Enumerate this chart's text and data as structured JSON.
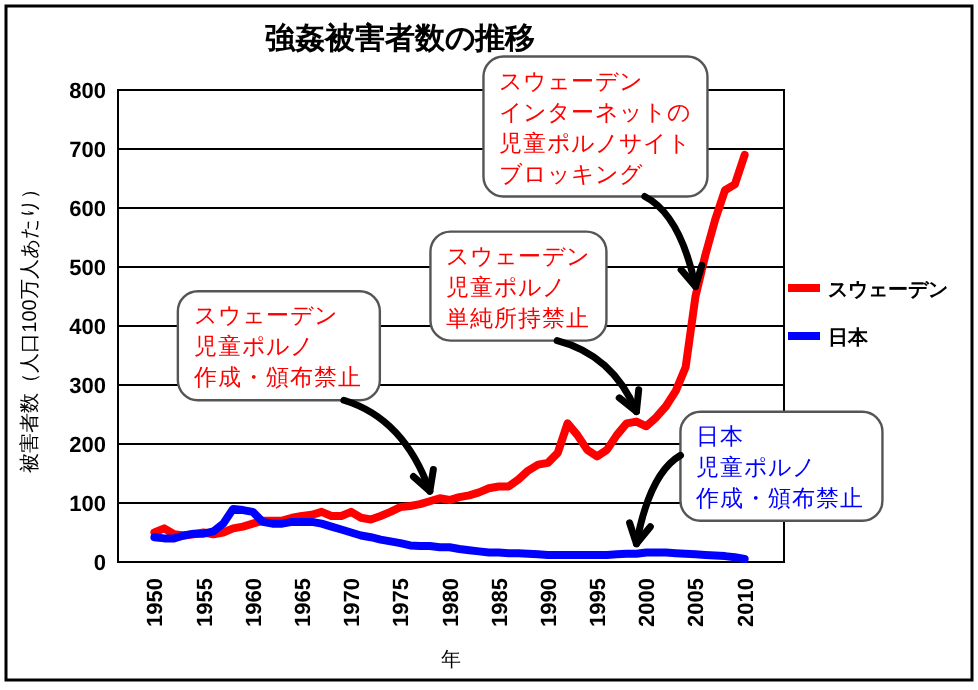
{
  "chart_data": {
    "type": "line",
    "title": "強姦被害者数の推移",
    "xlabel": "年",
    "ylabel": "被害者数（人口100万人あたり）",
    "x": [
      1950,
      1951,
      1952,
      1953,
      1954,
      1955,
      1956,
      1957,
      1958,
      1959,
      1960,
      1961,
      1962,
      1963,
      1964,
      1965,
      1966,
      1967,
      1968,
      1969,
      1970,
      1971,
      1972,
      1973,
      1974,
      1975,
      1976,
      1977,
      1978,
      1979,
      1980,
      1981,
      1982,
      1983,
      1984,
      1985,
      1986,
      1987,
      1988,
      1989,
      1990,
      1991,
      1992,
      1993,
      1994,
      1995,
      1996,
      1997,
      1998,
      1999,
      2000,
      2001,
      2002,
      2003,
      2004,
      2005,
      2006,
      2007,
      2008,
      2009,
      2010
    ],
    "series": [
      {
        "name": "スウェーデン",
        "color": "#ff0000",
        "values": [
          50,
          57,
          47,
          45,
          47,
          50,
          47,
          50,
          57,
          60,
          65,
          70,
          70,
          70,
          75,
          78,
          80,
          85,
          78,
          78,
          85,
          75,
          72,
          78,
          85,
          93,
          95,
          98,
          103,
          108,
          105,
          110,
          113,
          118,
          125,
          128,
          128,
          140,
          155,
          165,
          168,
          185,
          235,
          215,
          190,
          179,
          190,
          215,
          235,
          238,
          230,
          245,
          264,
          290,
          330,
          450,
          520,
          580,
          630,
          640,
          690
        ]
      },
      {
        "name": "日本",
        "color": "#0000ff",
        "values": [
          42,
          40,
          40,
          45,
          48,
          48,
          52,
          65,
          90,
          88,
          85,
          68,
          65,
          65,
          68,
          68,
          68,
          65,
          60,
          55,
          50,
          45,
          42,
          38,
          35,
          32,
          28,
          27,
          27,
          25,
          25,
          22,
          20,
          18,
          16,
          16,
          15,
          15,
          14,
          13,
          12,
          12,
          12,
          12,
          12,
          12,
          12,
          13,
          14,
          14,
          16,
          16,
          16,
          15,
          14,
          13,
          12,
          11,
          10,
          8,
          5
        ]
      }
    ],
    "xlim": [
      1946.3,
      2014
    ],
    "ylim": [
      0,
      800
    ],
    "xticks": [
      1950,
      1955,
      1960,
      1965,
      1970,
      1975,
      1980,
      1985,
      1990,
      1995,
      2000,
      2005,
      2010
    ],
    "yticks": [
      0,
      100,
      200,
      300,
      400,
      500,
      600,
      700,
      800
    ],
    "grid": "y",
    "legend": "right",
    "marker": "none",
    "line_style": "solid",
    "annotations": [
      {
        "text": "スウェーデン児童ポルノ作成・頒布禁止",
        "x": 1978,
        "y": 103
      },
      {
        "text": "スウェーデン児童ポルノ単純所持禁止",
        "x": 1999,
        "y": 238
      },
      {
        "text": "スウェーデンインターネットの児童ポルノサイトブロッキング",
        "x": 2005,
        "y": 450
      },
      {
        "text": "日本児童ポルノ作成・頒布禁止",
        "x": 1999,
        "y": 14
      }
    ]
  }
}
